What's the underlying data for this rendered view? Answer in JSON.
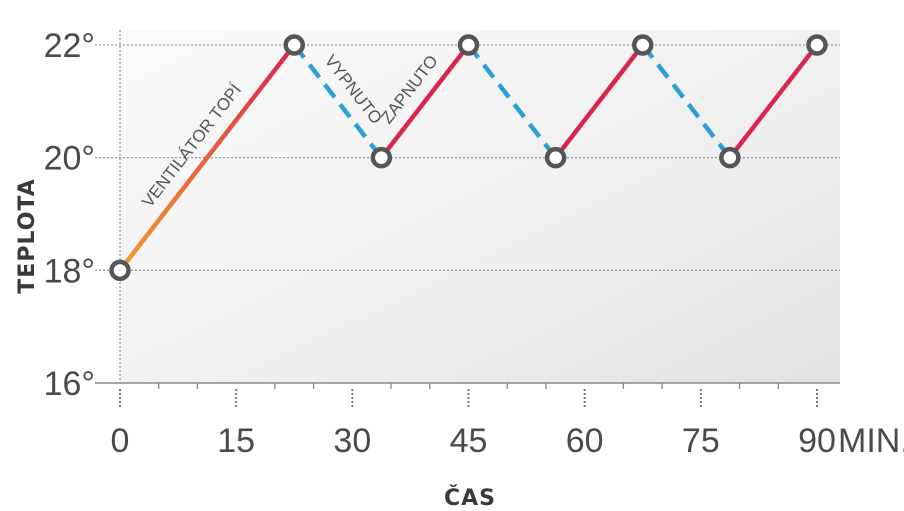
{
  "chart_data": {
    "type": "line",
    "xlabel": "ČAS",
    "ylabel": "TEPLOTA",
    "x_unit": "MIN.",
    "xlim": [
      0,
      90
    ],
    "ylim": [
      16,
      22
    ],
    "x_ticks": [
      0,
      15,
      30,
      45,
      60,
      75,
      90
    ],
    "x_tick_labels": [
      "0",
      "15",
      "30",
      "45",
      "60",
      "75",
      "90"
    ],
    "y_ticks": [
      16,
      18,
      20,
      22
    ],
    "y_tick_labels": [
      "16°",
      "18°",
      "20°",
      "22°"
    ],
    "grid": "horizontal dotted at 18, 20, 22",
    "points": [
      {
        "x": 0,
        "y": 18
      },
      {
        "x": 22.5,
        "y": 22
      },
      {
        "x": 33.75,
        "y": 20
      },
      {
        "x": 45,
        "y": 22
      },
      {
        "x": 56.25,
        "y": 20
      },
      {
        "x": 67.5,
        "y": 22
      },
      {
        "x": 78.75,
        "y": 20
      },
      {
        "x": 90,
        "y": 22
      }
    ],
    "segment_states": [
      "heating",
      "off",
      "heating",
      "off",
      "heating",
      "off",
      "heating"
    ],
    "annotations": [
      {
        "text": "VENTILÁTOR TOPÍ",
        "segment": 0
      },
      {
        "text": "VYPNUTO",
        "segment": 1
      },
      {
        "text": "ZAPNUTO",
        "segment": 2
      }
    ],
    "colors": {
      "heating_start": "#f39a2a",
      "heating_end": "#d9264f",
      "off": "#2a9fd8",
      "marker_stroke": "#555555",
      "grid": "#9a9a9a"
    }
  }
}
